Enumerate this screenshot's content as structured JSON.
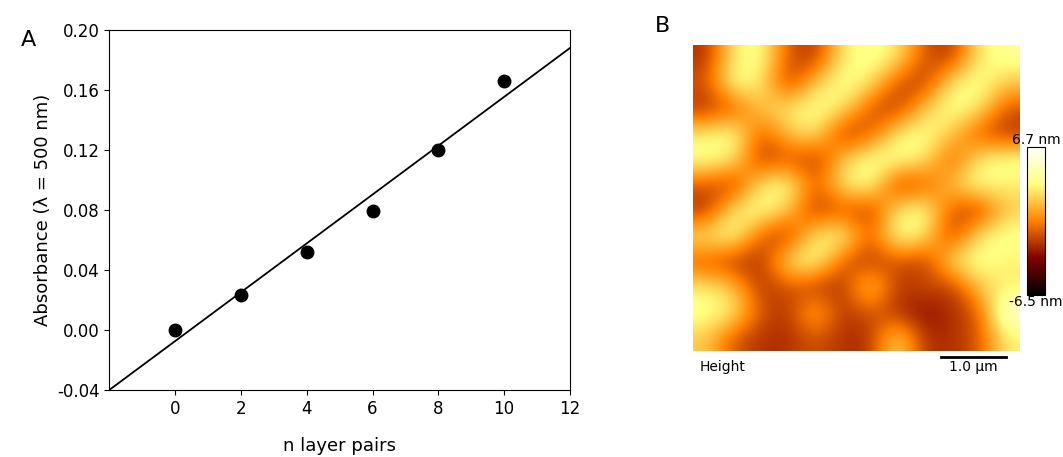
{
  "chart_data": [
    {
      "type": "scatter",
      "panel_label": "A",
      "x": [
        0,
        2,
        4,
        6,
        8,
        10
      ],
      "values": [
        0.0,
        0.023,
        0.052,
        0.079,
        0.12,
        0.166
      ],
      "color": "#000000",
      "marker": "o",
      "fit_line": {
        "x": [
          -2,
          12
        ],
        "values": [
          -0.04,
          0.188
        ],
        "color": "#000000",
        "line_style": "solid"
      },
      "x_label": "n layer pairs",
      "y_label": "Absorbance (λ = 500 nm)",
      "xlim": [
        -2,
        12
      ],
      "xticks": [
        0,
        2,
        4,
        6,
        8,
        10,
        12
      ],
      "ylim": [
        -0.04,
        0.2
      ],
      "yticks": [
        -0.04,
        {
          "value": 0,
          "label": "0.00"
        },
        0.04,
        0.08,
        0.12,
        0.16,
        {
          "value": 0.2,
          "label": "0.20"
        }
      ],
      "grid": false
    },
    {
      "type": "heatmap",
      "panel_label": "B",
      "caption": "Height",
      "image_size_um": 5.0,
      "scale_bar_um": 1.0,
      "scale_bar_label": "1.0 µm",
      "tick_labels": false,
      "cells": [
        [
          -2,
          3,
          4,
          -1,
          -2,
          3,
          4,
          3,
          -1,
          -2,
          3,
          4
        ],
        [
          -1,
          4,
          3,
          -2,
          2,
          4,
          3,
          -1,
          -2,
          3,
          4,
          2
        ],
        [
          -2,
          -1,
          2,
          3,
          4,
          3,
          -1,
          -2,
          2,
          4,
          3,
          -1
        ],
        [
          3,
          4,
          -1,
          2,
          3,
          -2,
          -1,
          3,
          4,
          2,
          -1,
          -2
        ],
        [
          4,
          3,
          -2,
          -1,
          -2,
          2,
          4,
          4,
          3,
          -1,
          3,
          4
        ],
        [
          -1,
          -2,
          3,
          4,
          -1,
          3,
          4,
          -2,
          -1,
          2,
          4,
          3
        ],
        [
          -2,
          3,
          4,
          2,
          -2,
          -1,
          -2,
          3,
          4,
          -1,
          -2,
          2
        ],
        [
          3,
          4,
          -1,
          -2,
          3,
          4,
          -1,
          4,
          3,
          -2,
          3,
          4
        ],
        [
          -1,
          -2,
          -2,
          3,
          4,
          -1,
          -2,
          -1,
          -2,
          3,
          4,
          3
        ],
        [
          3,
          2,
          -2,
          -1,
          -2,
          -2,
          3,
          -2,
          -1,
          -2,
          2,
          3
        ],
        [
          4,
          3,
          -1,
          -2,
          2,
          -2,
          -1,
          -2,
          -3,
          -2,
          -1,
          6
        ],
        [
          2,
          -1,
          -2,
          -2,
          -1,
          -2,
          -2,
          3,
          -2,
          -2,
          -1,
          3
        ]
      ],
      "color_range": [
        -6.5,
        6.7
      ],
      "color_ticks": [
        {
          "value": 6.7,
          "label": "6.7 nm"
        },
        {
          "value": -6.5,
          "label": "-6.5 nm"
        }
      ]
    }
  ]
}
